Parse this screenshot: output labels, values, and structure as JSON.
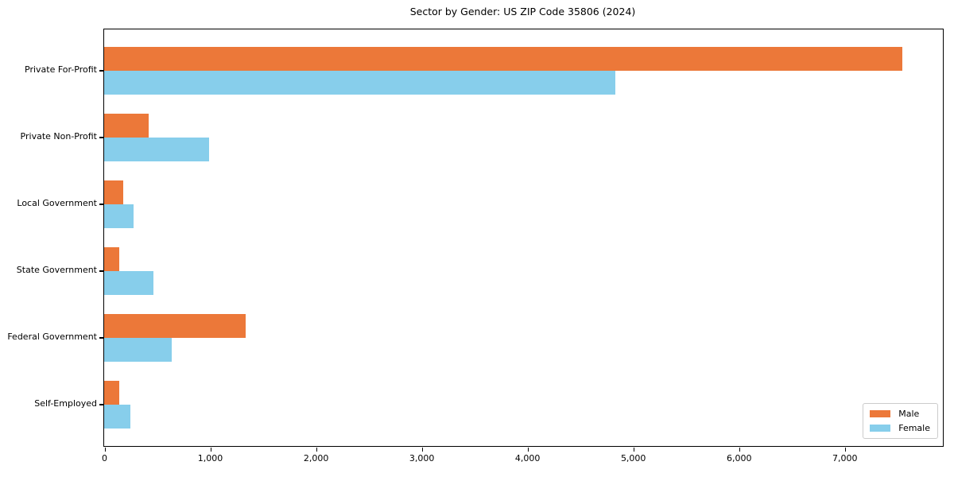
{
  "page_title": "Sector by Gender: US ZIP Code 35806 (2024)",
  "chart_data": {
    "type": "bar",
    "orientation": "horizontal",
    "title": "Sector by Gender: US ZIP Code 35806 (2024)",
    "categories": [
      "Private For-Profit",
      "Private Non-Profit",
      "Local Government",
      "State Government",
      "Federal Government",
      "Self-Employed"
    ],
    "series": [
      {
        "name": "Male",
        "color": "#EC7839",
        "values": [
          7550,
          420,
          180,
          140,
          1340,
          145
        ]
      },
      {
        "name": "Female",
        "color": "#87CEEB",
        "values": [
          4830,
          990,
          275,
          465,
          640,
          245
        ]
      }
    ],
    "xlabel": "",
    "ylabel": "",
    "xlim": [
      0,
      7930
    ],
    "x_ticks": [
      0,
      1000,
      2000,
      3000,
      4000,
      5000,
      6000,
      7000
    ],
    "x_tick_labels": [
      "0",
      "1,000",
      "2,000",
      "3,000",
      "4,000",
      "5,000",
      "6,000",
      "7,000"
    ],
    "grid": false,
    "legend": {
      "position": "lower right"
    },
    "axis_color": "#000000",
    "plot_background": "#ffffff"
  }
}
